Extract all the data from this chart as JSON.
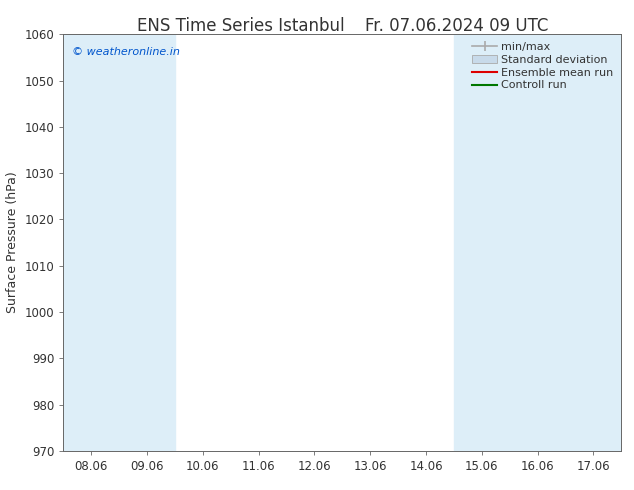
{
  "title": "ENS Time Series Istanbul",
  "title2": "Fr. 07.06.2024 09 UTC",
  "ylabel": "Surface Pressure (hPa)",
  "ylim": [
    970,
    1060
  ],
  "yticks": [
    970,
    980,
    990,
    1000,
    1010,
    1020,
    1030,
    1040,
    1050,
    1060
  ],
  "xtick_labels": [
    "08.06",
    "09.06",
    "10.06",
    "11.06",
    "12.06",
    "13.06",
    "14.06",
    "15.06",
    "16.06",
    "17.06"
  ],
  "xtick_positions": [
    0,
    1,
    2,
    3,
    4,
    5,
    6,
    7,
    8,
    9
  ],
  "xlim": [
    -0.5,
    9.5
  ],
  "shaded_bands": [
    {
      "xmin": -0.5,
      "xmax": 0.5
    },
    {
      "xmin": 0.5,
      "xmax": 1.5
    },
    {
      "xmin": 6.5,
      "xmax": 7.5
    },
    {
      "xmin": 7.5,
      "xmax": 8.5
    },
    {
      "xmin": 8.5,
      "xmax": 9.5
    }
  ],
  "shade_color": "#ddeef8",
  "copyright_text": "© weatheronline.in",
  "copyright_color": "#0055cc",
  "legend_items": [
    {
      "label": "min/max",
      "color": "#aaaaaa",
      "type": "minmax"
    },
    {
      "label": "Standard deviation",
      "color": "#c8daea",
      "type": "bar"
    },
    {
      "label": "Ensemble mean run",
      "color": "#dd0000",
      "type": "line"
    },
    {
      "label": "Controll run",
      "color": "#007700",
      "type": "line"
    }
  ],
  "bg_color": "#ffffff",
  "font_color": "#333333",
  "title_fontsize": 12,
  "axis_fontsize": 9,
  "tick_fontsize": 8.5,
  "legend_fontsize": 8
}
